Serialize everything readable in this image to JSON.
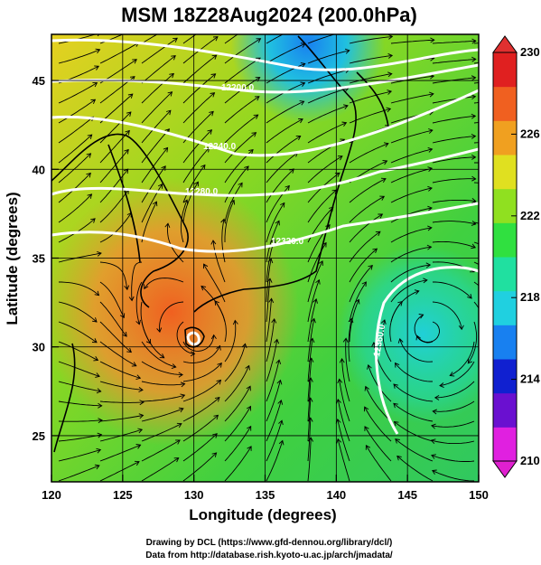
{
  "title": "MSM 18Z28Aug2024 (200.0hPa)",
  "xlabel": "Longitude (degrees)",
  "ylabel": "Latitude  (degrees)",
  "x_ticks": [
    {
      "value": 120,
      "label": "120"
    },
    {
      "value": 125,
      "label": "125"
    },
    {
      "value": 130,
      "label": "130"
    },
    {
      "value": 135,
      "label": "135"
    },
    {
      "value": 140,
      "label": "140"
    },
    {
      "value": 145,
      "label": "145"
    },
    {
      "value": 150,
      "label": "150"
    }
  ],
  "y_ticks": [
    {
      "value": 25,
      "label": "25"
    },
    {
      "value": 30,
      "label": "30"
    },
    {
      "value": 35,
      "label": "35"
    },
    {
      "value": 40,
      "label": "40"
    },
    {
      "value": 45,
      "label": "45"
    }
  ],
  "map_extent": {
    "lon": [
      120,
      150
    ],
    "lat": [
      22.4,
      47.6
    ]
  },
  "colorbar": {
    "min": 210,
    "max": 230,
    "ticks": [
      {
        "value": 230,
        "label": "230"
      },
      {
        "value": 226,
        "label": "226"
      },
      {
        "value": 222,
        "label": "222"
      },
      {
        "value": 218,
        "label": "218"
      },
      {
        "value": 214,
        "label": "214"
      },
      {
        "value": 210,
        "label": "210"
      }
    ],
    "colors": [
      "#e020e0",
      "#6a10d0",
      "#1020d0",
      "#1880f0",
      "#20d0e0",
      "#20e0a0",
      "#30e040",
      "#90e020",
      "#e0e020",
      "#f0a020",
      "#f06020",
      "#e02020"
    ]
  },
  "contour_labels": [
    "12200.0",
    "12240.0",
    "12280.0",
    "12320.0",
    "12360.0"
  ],
  "credits": {
    "line1": "Drawing by DCL (https://www.gfd-dennou.org/library/dcl/)",
    "line2": "Data from http://database.rish.kyoto-u.ac.jp/arch/jmadata/"
  }
}
